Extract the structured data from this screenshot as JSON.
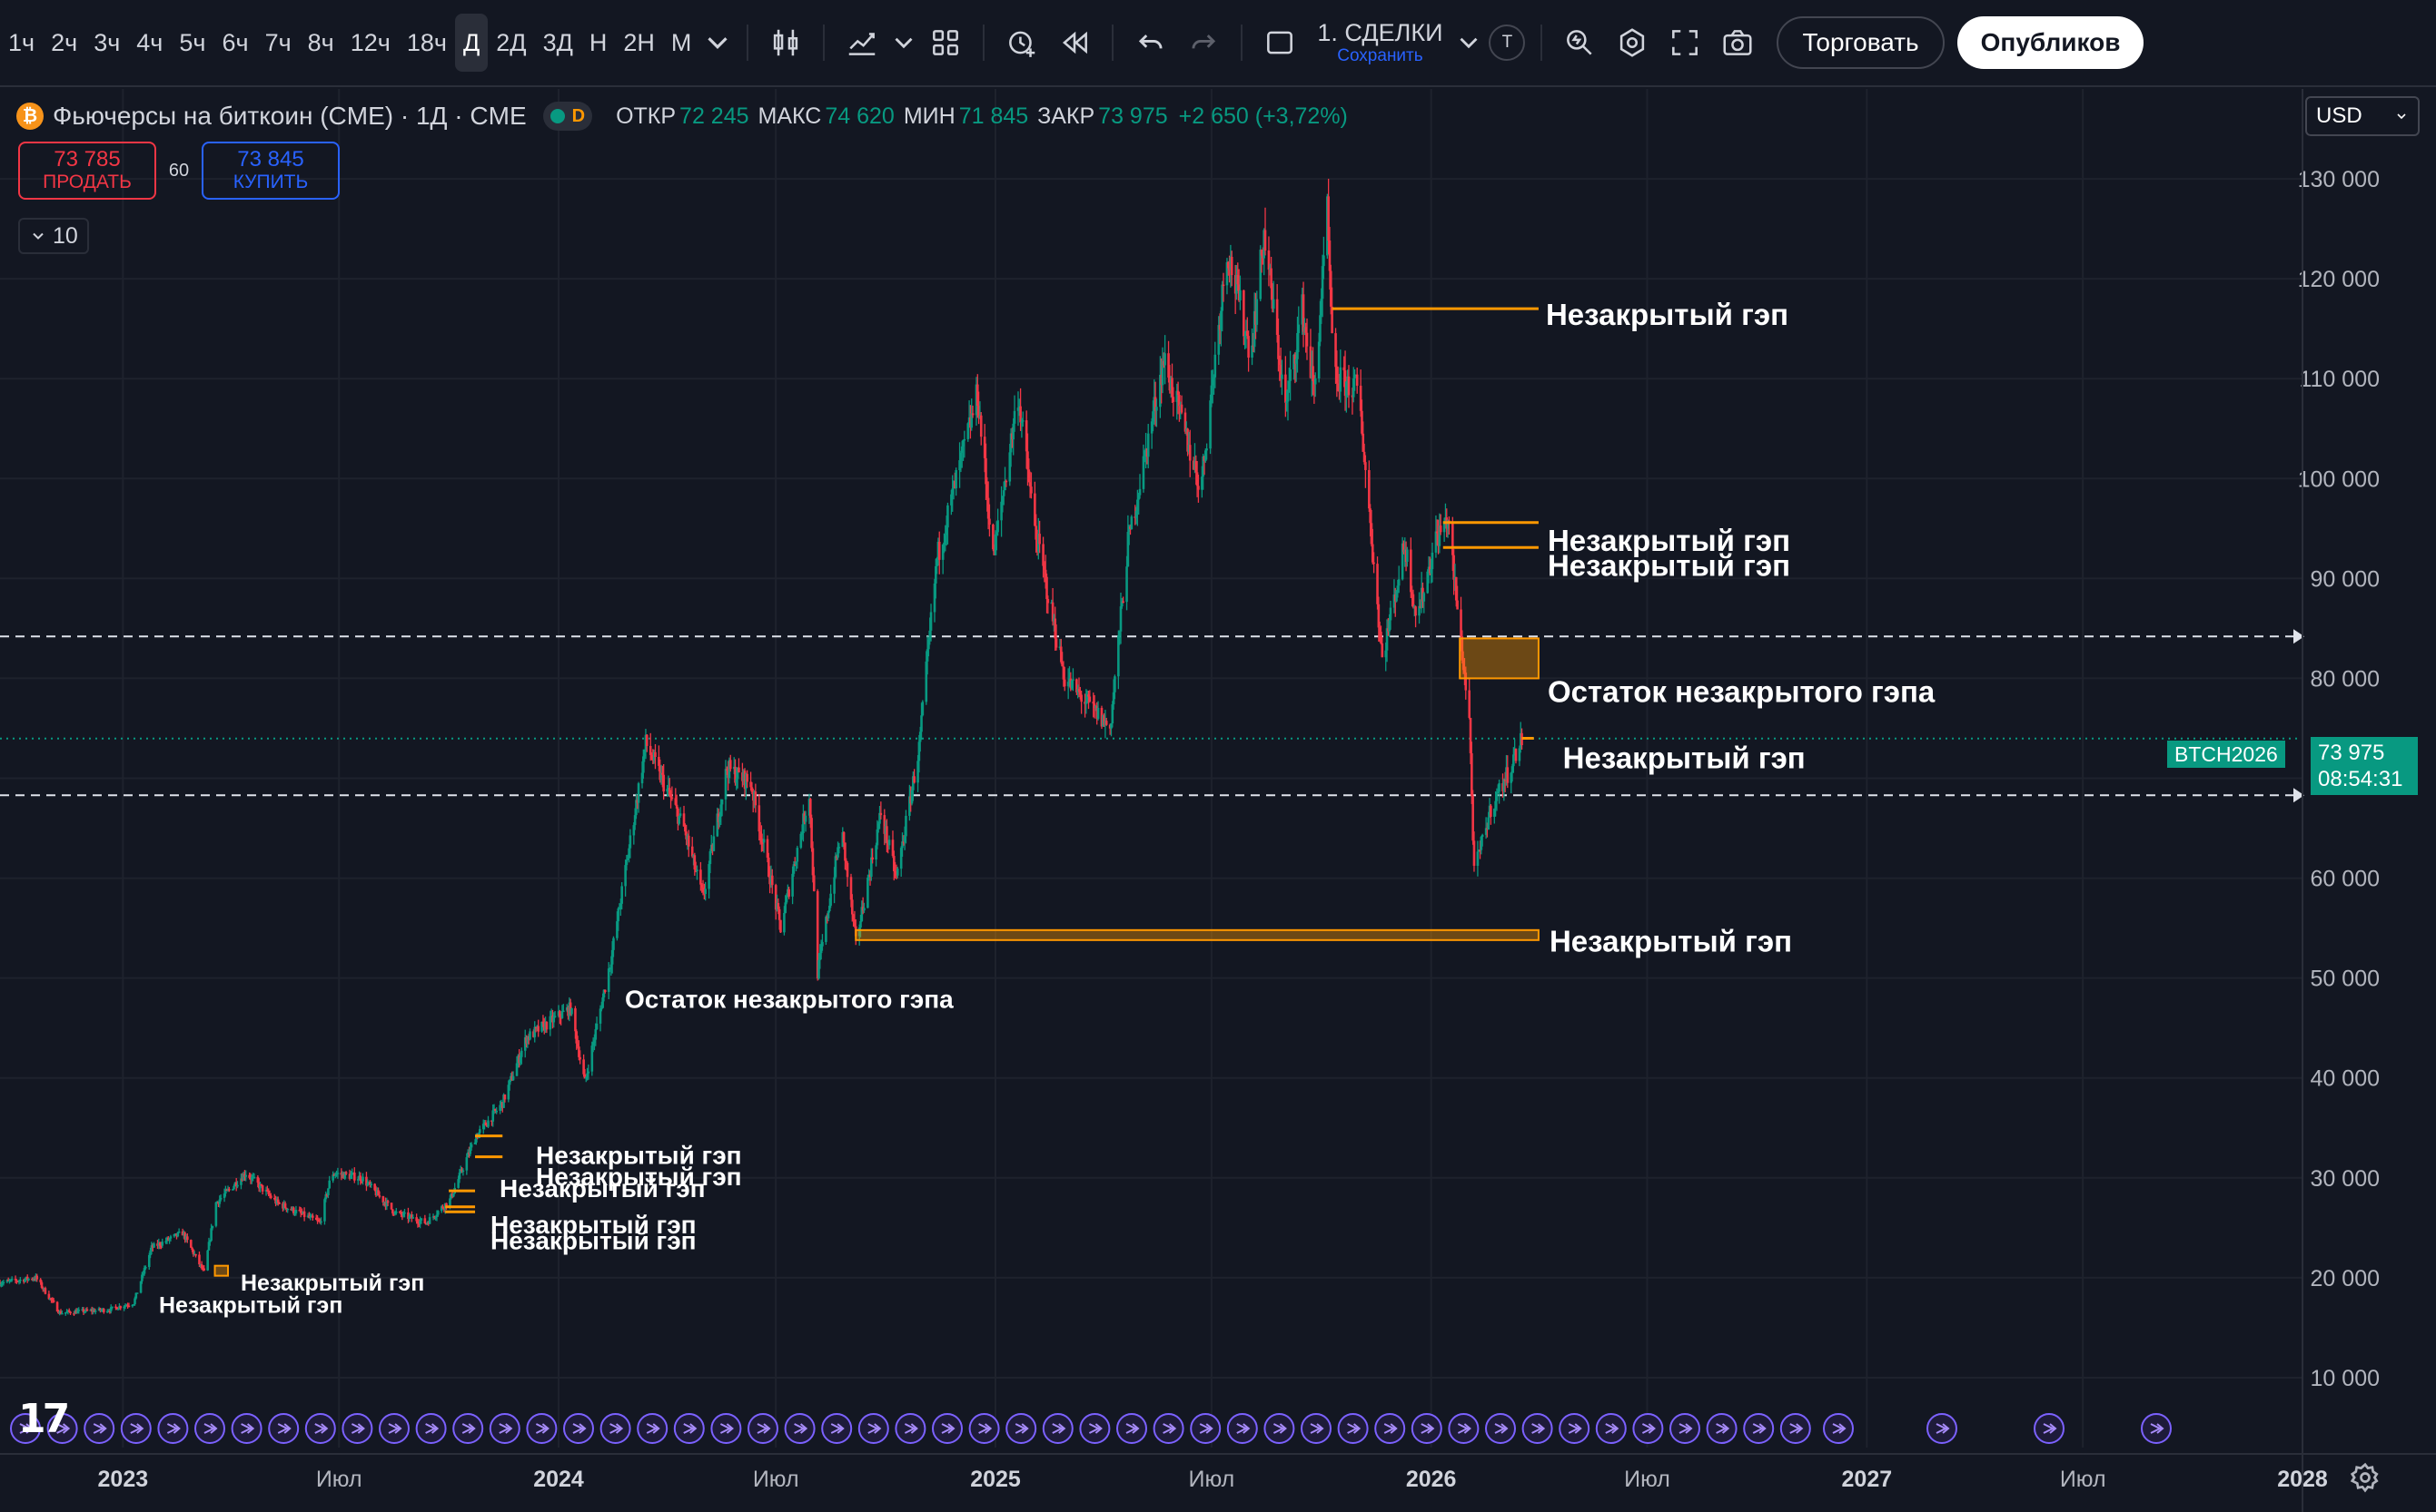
{
  "toolbar": {
    "timeframes": [
      "1ч",
      "2ч",
      "3ч",
      "4ч",
      "5ч",
      "6ч",
      "7ч",
      "8ч",
      "12ч",
      "18ч",
      "Д",
      "2Д",
      "3Д",
      "Н",
      "2Н",
      "М"
    ],
    "active_timeframe": "Д",
    "layout_name": "1. СДЕЛКИ",
    "layout_save": "Сохранить",
    "layout_badge": "T",
    "trade_label": "Торговать",
    "publish_label": "Опубликов"
  },
  "legend": {
    "logo_glyph": "₿",
    "symbol": "Фьючерсы на биткоин (CME) · 1Д · CME",
    "delay_badge": "D",
    "open_label": "ОТКР",
    "open": "72 245",
    "high_label": "МАКС",
    "high": "74 620",
    "low_label": "МИН",
    "low": "71 845",
    "close_label": "ЗАКР",
    "close": "73 975",
    "change": "+2 650 (+3,72%)"
  },
  "trade_panel": {
    "sell_price": "73 785",
    "sell_label": "ПРОДАТЬ",
    "spread": "60",
    "buy_price": "73 845",
    "buy_label": "КУПИТЬ"
  },
  "collapse_count": "10",
  "currency": "USD",
  "last_price": {
    "symbol": "BTCH2026",
    "price": "73 975",
    "countdown": "08:54:31"
  },
  "colors": {
    "up": "#089981",
    "down": "#f23645",
    "gap": "#ff9800",
    "text": "#ffffff",
    "axis": "#b2b5be",
    "grid": "#1e222d",
    "background": "#131722"
  },
  "chart_data": {
    "type": "candlestick",
    "title": "",
    "xlabel": "",
    "ylabel": "",
    "x_range": [
      "2022-09-20",
      "2028-01-01"
    ],
    "y_range": [
      3000,
      139000
    ],
    "y_ticks": [
      10000,
      20000,
      30000,
      40000,
      50000,
      60000,
      70000,
      80000,
      90000,
      100000,
      110000,
      120000,
      130000
    ],
    "y_tick_labels": [
      "10 000",
      "20 000",
      "30 000",
      "40 000",
      "50 000",
      "60 000",
      "70 000",
      "80 000",
      "90 000",
      "100 000",
      "110 000",
      "120 000",
      "130 000"
    ],
    "x_ticks": [
      {
        "date": "2023-01-01",
        "label": "2023",
        "major": true
      },
      {
        "date": "2023-07-01",
        "label": "Июл",
        "major": false
      },
      {
        "date": "2024-01-01",
        "label": "2024",
        "major": true
      },
      {
        "date": "2024-07-01",
        "label": "Июл",
        "major": false
      },
      {
        "date": "2025-01-01",
        "label": "2025",
        "major": true
      },
      {
        "date": "2025-07-01",
        "label": "Июл",
        "major": false
      },
      {
        "date": "2026-01-01",
        "label": "2026",
        "major": true
      },
      {
        "date": "2026-07-01",
        "label": "Июл",
        "major": false
      },
      {
        "date": "2027-01-01",
        "label": "2027",
        "major": true
      },
      {
        "date": "2027-07-01",
        "label": "Июл",
        "major": false
      },
      {
        "date": "2028-01-01",
        "label": "2028",
        "major": true
      }
    ],
    "price_path": [
      [
        "2022-09-20",
        19500
      ],
      [
        "2022-10-20",
        20000
      ],
      [
        "2022-11-09",
        16500
      ],
      [
        "2022-12-20",
        16800
      ],
      [
        "2023-01-10",
        17500
      ],
      [
        "2023-01-25",
        23000
      ],
      [
        "2023-02-20",
        24500
      ],
      [
        "2023-03-10",
        20500
      ],
      [
        "2023-03-20",
        27500
      ],
      [
        "2023-04-14",
        30500
      ],
      [
        "2023-05-10",
        27500
      ],
      [
        "2023-06-15",
        25500
      ],
      [
        "2023-06-25",
        30500
      ],
      [
        "2023-07-20",
        30000
      ],
      [
        "2023-08-17",
        26500
      ],
      [
        "2023-09-12",
        25500
      ],
      [
        "2023-10-02",
        27800
      ],
      [
        "2023-10-23",
        34000
      ],
      [
        "2023-11-15",
        37500
      ],
      [
        "2023-12-05",
        44000
      ],
      [
        "2024-01-11",
        47000
      ],
      [
        "2024-01-23",
        39500
      ],
      [
        "2024-02-14",
        52000
      ],
      [
        "2024-02-29",
        63000
      ],
      [
        "2024-03-14",
        73500
      ],
      [
        "2024-04-15",
        65000
      ],
      [
        "2024-05-01",
        58000
      ],
      [
        "2024-05-21",
        71000
      ],
      [
        "2024-06-10",
        69500
      ],
      [
        "2024-07-05",
        55000
      ],
      [
        "2024-07-29",
        68500
      ],
      [
        "2024-08-05",
        50500
      ],
      [
        "2024-08-25",
        65000
      ],
      [
        "2024-09-06",
        53500
      ],
      [
        "2024-09-27",
        66500
      ],
      [
        "2024-10-10",
        60000
      ],
      [
        "2024-10-29",
        73000
      ],
      [
        "2024-11-13",
        92000
      ],
      [
        "2024-12-17",
        108500
      ],
      [
        "2024-12-30",
        92000
      ],
      [
        "2025-01-20",
        108500
      ],
      [
        "2025-02-03",
        95000
      ],
      [
        "2025-02-28",
        80000
      ],
      [
        "2025-03-11",
        78500
      ],
      [
        "2025-04-07",
        75000
      ],
      [
        "2025-04-22",
        93500
      ],
      [
        "2025-05-22",
        112000
      ],
      [
        "2025-06-22",
        99000
      ],
      [
        "2025-07-14",
        123000
      ],
      [
        "2025-08-03",
        112500
      ],
      [
        "2025-08-14",
        124500
      ],
      [
        "2025-09-01",
        107000
      ],
      [
        "2025-09-15",
        117000
      ],
      [
        "2025-09-25",
        108500
      ],
      [
        "2025-10-06",
        126500
      ],
      [
        "2025-10-11",
        110000
      ],
      [
        "2025-11-01",
        109000
      ],
      [
        "2025-11-21",
        82000
      ],
      [
        "2025-12-10",
        93500
      ],
      [
        "2025-12-20",
        86000
      ],
      [
        "2026-01-05",
        94000
      ],
      [
        "2026-01-15",
        96000
      ],
      [
        "2026-01-22",
        88000
      ],
      [
        "2026-02-02",
        76000
      ],
      [
        "2026-02-06",
        60500
      ],
      [
        "2026-02-20",
        67000
      ],
      [
        "2026-03-06",
        70500
      ],
      [
        "2026-03-18",
        73975
      ]
    ],
    "gaps": [
      {
        "start": "2025-10-10",
        "end": "2026-04-01",
        "low": 116500,
        "high": 117000,
        "label": "Незакрытый гэп"
      },
      {
        "start": "2026-01-11",
        "end": "2026-04-01",
        "low": 95400,
        "high": 95600,
        "label": "Незакрытый гэп"
      },
      {
        "start": "2026-01-11",
        "end": "2026-04-01",
        "low": 92900,
        "high": 93100,
        "label": "Незакрытый гэп"
      },
      {
        "start": "2026-01-25",
        "end": "2026-04-01",
        "low": 80000,
        "high": 84000,
        "label": "Остаток незакрытого гэпа"
      },
      {
        "start": "2026-03-18",
        "end": "2026-03-28",
        "low": 73800,
        "high": 74000,
        "label": "Незакрытый гэп"
      },
      {
        "start": "2024-09-06",
        "end": "2026-04-01",
        "low": 53800,
        "high": 54800,
        "label": "Незакрытый гэп"
      },
      {
        "start": "2024-03-05",
        "end": "2024-03-05",
        "low": 47000,
        "high": 47000,
        "label": "Остаток незакрытого гэпа"
      },
      {
        "start": "2023-10-23",
        "end": "2023-11-15",
        "low": 34000,
        "high": 34200,
        "label": "Незакрытый гэп"
      },
      {
        "start": "2023-10-23",
        "end": "2023-11-15",
        "low": 31900,
        "high": 32100,
        "label": "Незакрытый гэп"
      },
      {
        "start": "2023-10-01",
        "end": "2023-10-23",
        "low": 28500,
        "high": 28700,
        "label": "Незакрытый гэп"
      },
      {
        "start": "2023-09-28",
        "end": "2023-10-23",
        "low": 26900,
        "high": 27100,
        "label": "Незакрытый гэп"
      },
      {
        "start": "2023-09-28",
        "end": "2023-10-23",
        "low": 26400,
        "high": 26600,
        "label": "Незакрытый гэп"
      },
      {
        "start": "2023-03-19",
        "end": "2023-03-30",
        "low": 20200,
        "high": 21200,
        "label": "Незакрытый гэп"
      },
      {
        "start": "2023-01-18",
        "end": "2023-01-18",
        "low": 16500,
        "high": 16500,
        "label": "Незакрытый гэп"
      }
    ],
    "horizontal_lines": [
      84200,
      68300
    ],
    "last_price": 73975
  }
}
